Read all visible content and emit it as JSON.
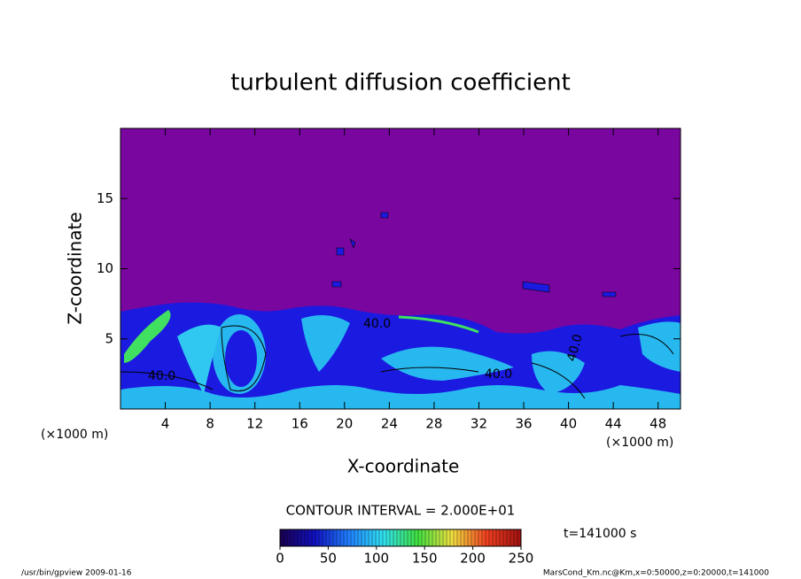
{
  "chart_data": {
    "type": "contour",
    "title": "turbulent diffusion coefficient",
    "x_label": "X-coordinate",
    "y_label": "Z-coordinate",
    "x_unit": "(×1000 m)",
    "y_unit": "(×1000 m)",
    "xlim": [
      0,
      50
    ],
    "ylim": [
      0,
      20
    ],
    "xticks": [
      4,
      8,
      12,
      16,
      20,
      24,
      28,
      32,
      36,
      40,
      44,
      48
    ],
    "yticks": [
      5,
      10,
      15
    ],
    "contour_interval": "CONTOUR INTERVAL = 2.000E+01",
    "contour_labels": [
      "40.0",
      "40.0",
      "40.0",
      "40.0"
    ],
    "colorbar": {
      "lim": [
        0,
        250
      ],
      "ticks": [
        0,
        50,
        100,
        150,
        200,
        250
      ],
      "colors": [
        "#1a0050",
        "#1010c0",
        "#2080ff",
        "#30e0f0",
        "#40e040",
        "#f0e040",
        "#f04020",
        "#a01010"
      ]
    },
    "time_label": "t=141000 s",
    "footer_left": "/usr/bin/gpview   2009-01-16",
    "footer_right": "MarsCond_Km.nc@Km,x=0:50000,z=0:20000,t=141000"
  }
}
